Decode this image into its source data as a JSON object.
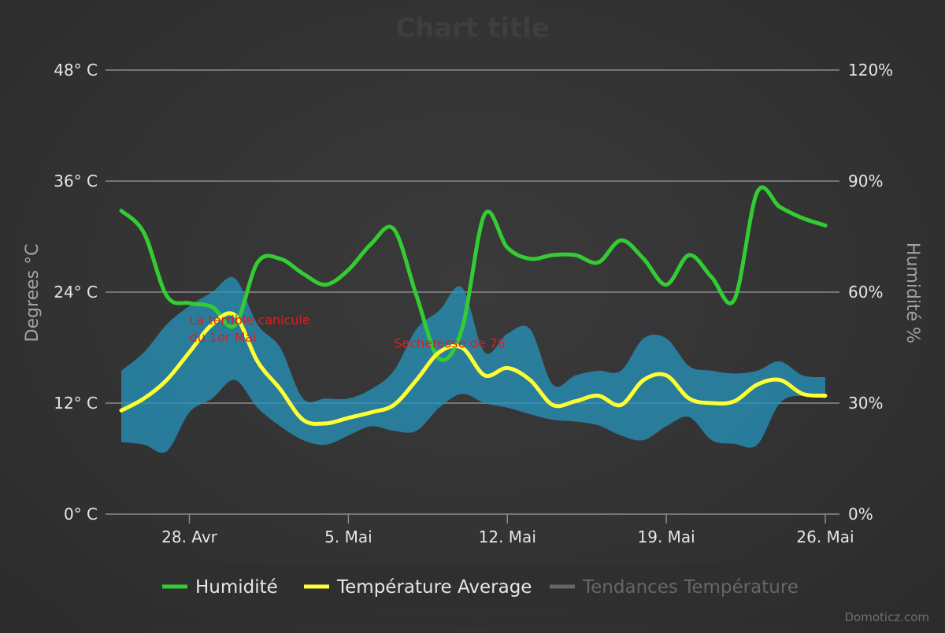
{
  "chart_data": {
    "type": "line",
    "title": "Chart title",
    "credits": "Domoticz.com",
    "x_range": [
      "2024-04-25",
      "2024-05-26"
    ],
    "x_ticks": [
      {
        "date": "2024-04-28",
        "label": "28. Avr"
      },
      {
        "date": "2024-05-05",
        "label": "5. Mai"
      },
      {
        "date": "2024-05-12",
        "label": "12. Mai"
      },
      {
        "date": "2024-05-19",
        "label": "19. Mai"
      },
      {
        "date": "2024-05-26",
        "label": "26. Mai"
      }
    ],
    "y_left": {
      "title": "Degrees °C",
      "range": [
        0,
        48
      ],
      "ticks": [
        {
          "value": 0,
          "label": "0° C"
        },
        {
          "value": 12,
          "label": "12° C"
        },
        {
          "value": 24,
          "label": "24° C"
        },
        {
          "value": 36,
          "label": "36° C"
        },
        {
          "value": 48,
          "label": "48° C"
        }
      ]
    },
    "y_right": {
      "title": "Humidité %",
      "range": [
        0,
        120
      ],
      "ticks": [
        {
          "value": 0,
          "label": "0%"
        },
        {
          "value": 30,
          "label": "30%"
        },
        {
          "value": 60,
          "label": "60%"
        },
        {
          "value": 90,
          "label": "90%"
        },
        {
          "value": 120,
          "label": "120%"
        }
      ]
    },
    "grid": true,
    "legend_position": "bottom-center",
    "series": [
      {
        "name": "Humidité",
        "axis": "right",
        "color": "#33cc33",
        "x": [
          "2024-04-25",
          "2024-04-26",
          "2024-04-27",
          "2024-04-28",
          "2024-04-29",
          "2024-04-30",
          "2024-05-01",
          "2024-05-02",
          "2024-05-03",
          "2024-05-04",
          "2024-05-05",
          "2024-05-06",
          "2024-05-07",
          "2024-05-08",
          "2024-05-09",
          "2024-05-10",
          "2024-05-11",
          "2024-05-12",
          "2024-05-13",
          "2024-05-14",
          "2024-05-15",
          "2024-05-16",
          "2024-05-17",
          "2024-05-18",
          "2024-05-19",
          "2024-05-20",
          "2024-05-21",
          "2024-05-22",
          "2024-05-23",
          "2024-05-24",
          "2024-05-25",
          "2024-05-26"
        ],
        "values": [
          82,
          76,
          59,
          57,
          56,
          51,
          68,
          69,
          65,
          62,
          66,
          73,
          77,
          59,
          42,
          50,
          81,
          72,
          69,
          70,
          70,
          68,
          74,
          69,
          62,
          70,
          64,
          58,
          87,
          83,
          80,
          78
        ]
      },
      {
        "name": "Température Average",
        "axis": "left",
        "color": "#ffff33",
        "x": [
          "2024-04-25",
          "2024-04-26",
          "2024-04-27",
          "2024-04-28",
          "2024-04-29",
          "2024-04-30",
          "2024-05-01",
          "2024-05-02",
          "2024-05-03",
          "2024-05-04",
          "2024-05-05",
          "2024-05-06",
          "2024-05-07",
          "2024-05-08",
          "2024-05-09",
          "2024-05-10",
          "2024-05-11",
          "2024-05-12",
          "2024-05-13",
          "2024-05-14",
          "2024-05-15",
          "2024-05-16",
          "2024-05-17",
          "2024-05-18",
          "2024-05-19",
          "2024-05-20",
          "2024-05-21",
          "2024-05-22",
          "2024-05-23",
          "2024-05-24",
          "2024-05-25",
          "2024-05-26"
        ],
        "values": [
          11.2,
          12.5,
          14.5,
          17.5,
          20.5,
          21.5,
          16.5,
          13.5,
          10.2,
          9.8,
          10.4,
          11.0,
          11.8,
          14.5,
          17.5,
          18.0,
          15.0,
          15.8,
          14.5,
          11.8,
          12.2,
          12.8,
          11.8,
          14.5,
          15.0,
          12.5,
          12.0,
          12.2,
          14.0,
          14.5,
          13.0,
          12.8
        ]
      },
      {
        "name": "Tendances Température",
        "axis": "left",
        "color": "#666666",
        "hidden": true,
        "x": [],
        "values": []
      }
    ],
    "range_band": {
      "axis": "left",
      "color": "#2596be",
      "x": [
        "2024-04-25",
        "2024-04-26",
        "2024-04-27",
        "2024-04-28",
        "2024-04-29",
        "2024-04-30",
        "2024-05-01",
        "2024-05-02",
        "2024-05-03",
        "2024-05-04",
        "2024-05-05",
        "2024-05-06",
        "2024-05-07",
        "2024-05-08",
        "2024-05-09",
        "2024-05-10",
        "2024-05-11",
        "2024-05-12",
        "2024-05-13",
        "2024-05-14",
        "2024-05-15",
        "2024-05-16",
        "2024-05-17",
        "2024-05-18",
        "2024-05-19",
        "2024-05-20",
        "2024-05-21",
        "2024-05-22",
        "2024-05-23",
        "2024-05-24",
        "2024-05-25",
        "2024-05-26"
      ],
      "low": [
        7.8,
        7.5,
        6.8,
        11.0,
        12.5,
        14.5,
        11.5,
        9.5,
        8.0,
        7.5,
        8.5,
        9.5,
        9.0,
        9.0,
        11.5,
        13.0,
        12.0,
        11.5,
        10.8,
        10.2,
        10.0,
        9.6,
        8.5,
        8.0,
        9.5,
        10.5,
        8.0,
        7.6,
        7.5,
        12.0,
        12.8,
        12.5
      ],
      "high": [
        15.5,
        17.5,
        20.5,
        22.5,
        24.0,
        25.5,
        20.5,
        18.0,
        12.5,
        12.5,
        12.5,
        13.5,
        15.5,
        20.0,
        22.0,
        24.5,
        17.5,
        19.5,
        20.0,
        14.0,
        15.0,
        15.5,
        15.5,
        19.0,
        19.0,
        16.0,
        15.5,
        15.2,
        15.5,
        16.5,
        15.0,
        14.8
      ]
    },
    "annotations": [
      {
        "x": "2024-04-28",
        "y": 20.5,
        "lines": [
          "La terrible canicule",
          "du 1er Mai"
        ]
      },
      {
        "x": "2024-05-07",
        "y": 18.0,
        "lines": [
          "Secheresse de 76"
        ]
      }
    ]
  }
}
